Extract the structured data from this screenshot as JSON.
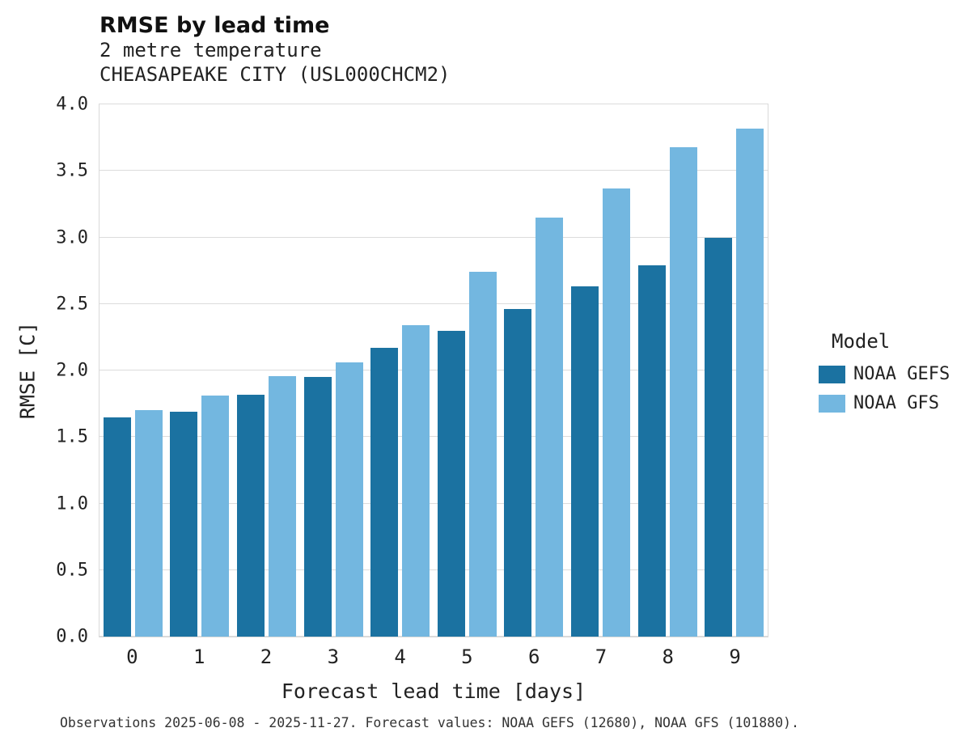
{
  "title": "RMSE by lead time",
  "subtitle": "2 metre temperature",
  "station": "CHEASAPEAKE CITY (USL000CHCM2)",
  "footer": "Observations 2025-06-08 - 2025-11-27. Forecast values: NOAA GEFS (12680), NOAA GFS (101880).",
  "legend": {
    "title": "Model"
  },
  "chart_data": {
    "type": "bar",
    "categories": [
      "0",
      "1",
      "2",
      "3",
      "4",
      "5",
      "6",
      "7",
      "8",
      "9"
    ],
    "series": [
      {
        "name": "NOAA GEFS",
        "color": "#1b72a1",
        "values": [
          1.65,
          1.69,
          1.82,
          1.95,
          2.17,
          2.3,
          2.46,
          2.63,
          2.79,
          3.0
        ]
      },
      {
        "name": "NOAA GFS",
        "color": "#73b7e0",
        "values": [
          1.7,
          1.81,
          1.96,
          2.06,
          2.34,
          2.74,
          3.15,
          3.37,
          3.68,
          3.82
        ]
      }
    ],
    "title": "RMSE by lead time",
    "xlabel": "Forecast lead time [days]",
    "ylabel": "RMSE [C]",
    "ylim": [
      0.0,
      4.0
    ],
    "ytick_step": 0.5,
    "grid": "horizontal",
    "legend_position": "right"
  }
}
